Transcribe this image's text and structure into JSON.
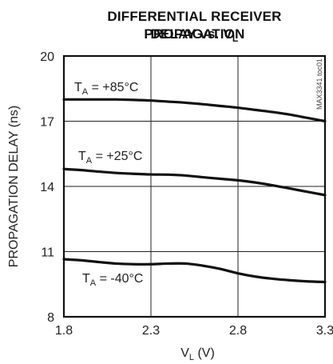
{
  "title": {
    "line1": "DIFFERENTIAL RECEIVER PROPAGATION",
    "line2_main": "DELAY vs. V",
    "line2_sub": "L"
  },
  "watermark": "MAX3341 toc01",
  "chart_data": {
    "type": "line",
    "title": "DIFFERENTIAL RECEIVER PROPAGATION DELAY vs. VL",
    "xlabel": "VL (V)",
    "ylabel": "PROPAGATION DELAY (ns)",
    "xlim": [
      1.8,
      3.3
    ],
    "ylim": [
      8,
      20
    ],
    "xticks": [
      1.8,
      2.3,
      2.8,
      3.3
    ],
    "xtick_labels": [
      "1.8",
      "2.3",
      "2.8",
      "3.3"
    ],
    "yticks": [
      8,
      11,
      14,
      17,
      20
    ],
    "ytick_labels": [
      "8",
      "11",
      "14",
      "17",
      "20"
    ],
    "grid": true,
    "legend": "none",
    "series": [
      {
        "name": "TA = +85°C",
        "label_main": "T",
        "label_sub": "A",
        "label_rest": " = +85°C",
        "x": [
          1.8,
          1.9,
          2.0,
          2.1,
          2.2,
          2.3,
          2.4,
          2.5,
          2.6,
          2.7,
          2.8,
          2.9,
          3.0,
          3.1,
          3.2,
          3.3
        ],
        "y": [
          18.0,
          18.0,
          18.0,
          18.0,
          17.98,
          17.95,
          17.9,
          17.85,
          17.78,
          17.7,
          17.62,
          17.52,
          17.42,
          17.3,
          17.15,
          17.0
        ]
      },
      {
        "name": "TA = +25°C",
        "label_main": "T",
        "label_sub": "A",
        "label_rest": " = +25°C",
        "x": [
          1.8,
          1.9,
          2.0,
          2.1,
          2.2,
          2.3,
          2.4,
          2.5,
          2.6,
          2.7,
          2.8,
          2.9,
          3.0,
          3.1,
          3.2,
          3.3
        ],
        "y": [
          14.8,
          14.75,
          14.68,
          14.62,
          14.58,
          14.55,
          14.54,
          14.5,
          14.42,
          14.35,
          14.28,
          14.18,
          14.05,
          13.9,
          13.75,
          13.6
        ]
      },
      {
        "name": "TA = -40°C",
        "label_main": "T",
        "label_sub": "A",
        "label_rest": " = -40°C",
        "x": [
          1.8,
          1.9,
          2.0,
          2.1,
          2.2,
          2.3,
          2.4,
          2.5,
          2.6,
          2.7,
          2.8,
          2.9,
          3.0,
          3.1,
          3.2,
          3.3
        ],
        "y": [
          10.65,
          10.6,
          10.52,
          10.45,
          10.42,
          10.42,
          10.45,
          10.45,
          10.35,
          10.2,
          10.0,
          9.85,
          9.75,
          9.68,
          9.63,
          9.6
        ]
      }
    ]
  }
}
